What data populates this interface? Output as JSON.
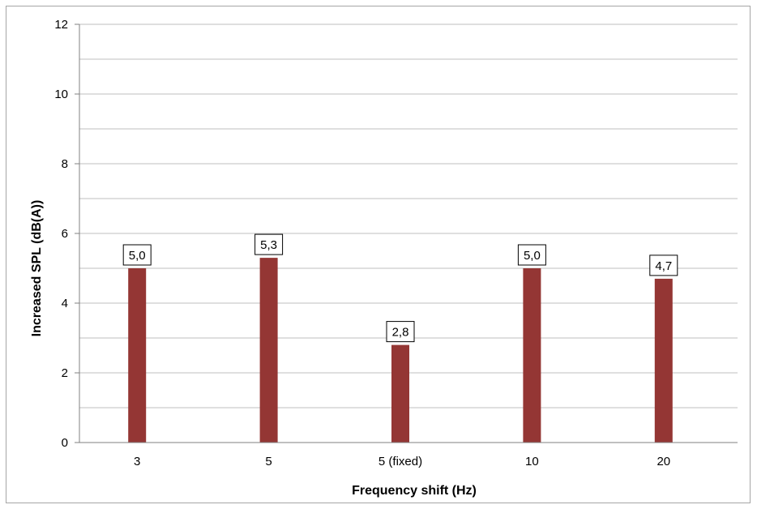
{
  "chart_data": {
    "type": "bar",
    "categories": [
      "3",
      "5",
      "5 (fixed)",
      "10",
      "20"
    ],
    "values": [
      5.0,
      5.3,
      2.8,
      5.0,
      4.7
    ],
    "data_labels": [
      "5,0",
      "5,3",
      "2,8",
      "5,0",
      "4,7"
    ],
    "xlabel": "Frequency shift (Hz)",
    "ylabel": "Increased SPL (dB(A))",
    "ylim": [
      0,
      12
    ],
    "yticks": [
      0,
      2,
      4,
      6,
      8,
      10,
      12
    ],
    "minor_gridlines_every": 1,
    "grid": true,
    "legend": "none",
    "colors": {
      "bar": "#943634",
      "grid": "#bfbfbf",
      "axis": "#808080"
    }
  }
}
